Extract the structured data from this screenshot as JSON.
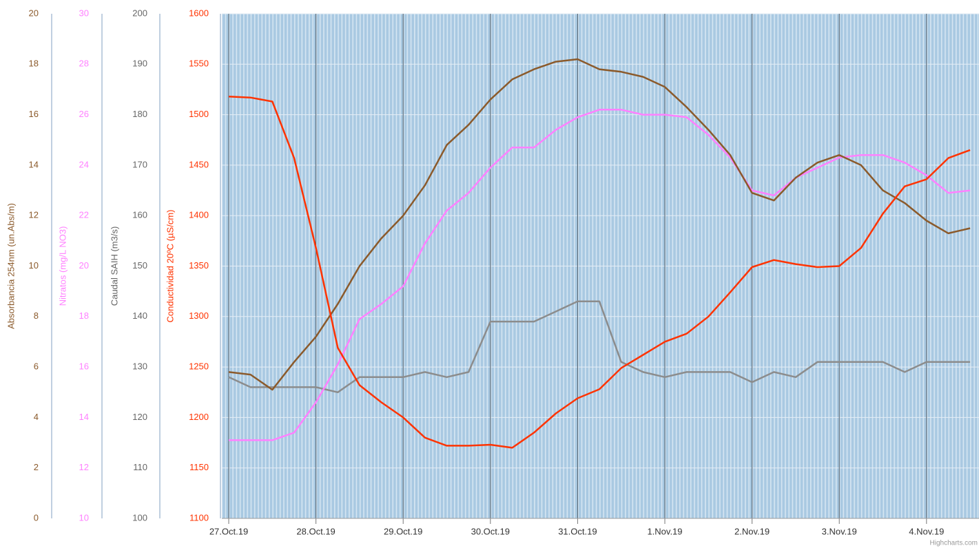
{
  "chart_data": {
    "type": "line",
    "categories": [
      "27.Oct.19",
      null,
      null,
      null,
      "28.Oct.19",
      null,
      null,
      null,
      "29.Oct.19",
      null,
      null,
      null,
      "30.Oct.19",
      null,
      null,
      null,
      "31.Oct.19",
      null,
      null,
      null,
      "1.Nov.19",
      null,
      null,
      null,
      "2.Nov.19",
      null,
      null,
      null,
      "3.Nov.19",
      null,
      null,
      null,
      "4.Nov.19",
      null,
      null
    ],
    "y_axes": [
      {
        "id": "y",
        "title": "Absorbancia 254nm (un.Abs/m)",
        "color": "#8b5a2b",
        "ylim": [
          0,
          20
        ],
        "yticks": [
          0,
          2,
          4,
          6,
          8,
          10,
          12,
          14,
          16,
          18,
          20
        ]
      },
      {
        "id": "y2",
        "title": "Nitratos (mg/L NO3)",
        "color": "#ff80ff",
        "ylim": [
          10,
          30
        ],
        "yticks": [
          10,
          12,
          14,
          16,
          18,
          20,
          22,
          24,
          26,
          28,
          30
        ]
      },
      {
        "id": "y3",
        "title": "Caudal SAIH (m3/s)",
        "color": "#666666",
        "ylim": [
          100,
          200
        ],
        "yticks": [
          100,
          110,
          120,
          130,
          140,
          150,
          160,
          170,
          180,
          190,
          200
        ]
      },
      {
        "id": "y4",
        "title": "Conductividad 20ºC (µS/cm)",
        "color": "#ff3300",
        "ylim": [
          1100,
          1600
        ],
        "yticks": [
          1100,
          1150,
          1200,
          1250,
          1300,
          1350,
          1400,
          1450,
          1500,
          1550,
          1600
        ]
      }
    ],
    "grid": true,
    "series": [
      {
        "axis": "y3",
        "color": "#8c8c8c",
        "values": [
          128,
          126,
          126,
          126,
          126,
          125,
          128,
          128,
          128,
          129,
          128,
          129,
          139,
          139,
          139,
          141,
          143,
          143,
          131,
          129,
          128,
          129,
          129,
          129,
          127,
          129,
          128,
          131,
          131,
          131,
          131,
          129,
          131,
          131,
          131
        ]
      },
      {
        "axis": "y2",
        "color": "#ff80ff",
        "values": [
          13.1,
          13.1,
          13.1,
          13.4,
          14.6,
          16.1,
          17.9,
          18.5,
          19.2,
          20.9,
          22.2,
          22.9,
          23.9,
          24.7,
          24.7,
          25.4,
          25.9,
          26.2,
          26.2,
          26.0,
          26.0,
          25.9,
          25.2,
          24.3,
          23.0,
          22.8,
          23.5,
          23.9,
          24.3,
          24.4,
          24.4,
          24.1,
          23.6,
          22.9,
          23.0
        ]
      },
      {
        "axis": "y",
        "color": "#8b5a2b",
        "values": [
          5.8,
          5.7,
          5.1,
          6.2,
          7.2,
          8.5,
          10.0,
          11.1,
          12.0,
          13.2,
          14.8,
          15.6,
          16.6,
          17.4,
          17.8,
          18.1,
          18.2,
          17.8,
          17.7,
          17.5,
          17.1,
          16.3,
          15.4,
          14.4,
          12.9,
          12.6,
          13.5,
          14.1,
          14.4,
          14.0,
          13.0,
          12.5,
          11.8,
          11.3,
          11.5
        ]
      },
      {
        "axis": "y4",
        "color": "#ff3300",
        "values": [
          1518,
          1517,
          1513,
          1457,
          1368,
          1269,
          1232,
          1215,
          1200,
          1180,
          1172,
          1172,
          1173,
          1170,
          1185,
          1204,
          1219,
          1228,
          1249,
          1262,
          1275,
          1283,
          1300,
          1324,
          1349,
          1356,
          1352,
          1349,
          1350,
          1368,
          1402,
          1429,
          1436,
          1457,
          1465
        ]
      }
    ],
    "credit": "Highcharts.com"
  }
}
